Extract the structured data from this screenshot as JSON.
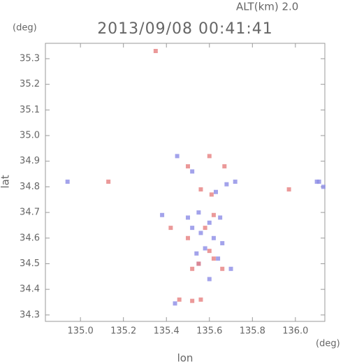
{
  "chart_data": {
    "type": "scatter",
    "title": "2013/09/08 00:41:41",
    "subtitle": "ALT(km) 2.0",
    "x_label": "lon",
    "y_label": "lat",
    "x_unit": "(deg)",
    "y_unit": "(deg)",
    "xlim": [
      134.837,
      136.137
    ],
    "ylim": [
      34.275,
      35.36
    ],
    "xticks": [
      {
        "value": 135,
        "label": "135.0"
      },
      135.2,
      135.4,
      135.6,
      135.8,
      {
        "value": 136,
        "label": "136.0"
      }
    ],
    "yticks": [
      34.3,
      34.4,
      34.5,
      34.6,
      34.7,
      34.8,
      34.9,
      {
        "value": 35,
        "label": "35.0"
      },
      35.1,
      35.2,
      35.3
    ],
    "series": [
      {
        "color": "#8c8ce6",
        "x": [
          135.45,
          135.52,
          134.94,
          135.63,
          135.68,
          135.72,
          136.1,
          136.13,
          136.11,
          135.55,
          135.5,
          135.6,
          135.65,
          135.56,
          135.62,
          135.58,
          135.54,
          135.66,
          135.7,
          135.55,
          135.6,
          135.44,
          135.38,
          135.52,
          135.64
        ],
        "y": [
          34.92,
          34.86,
          34.82,
          34.78,
          34.81,
          34.82,
          34.82,
          34.8,
          34.82,
          34.7,
          34.68,
          34.66,
          34.68,
          34.62,
          34.6,
          34.56,
          34.54,
          34.58,
          34.48,
          34.5,
          34.44,
          34.345,
          34.69,
          34.64,
          34.52
        ]
      },
      {
        "color": "#e68080",
        "x": [
          135.35,
          135.5,
          135.67,
          135.6,
          135.56,
          135.61,
          135.97,
          135.13,
          135.42,
          135.62,
          135.58,
          135.5,
          135.6,
          135.55,
          135.52,
          135.62,
          135.46,
          135.52,
          135.56,
          135.66
        ],
        "y": [
          35.33,
          34.88,
          34.88,
          34.92,
          34.79,
          34.77,
          34.79,
          34.82,
          34.64,
          34.69,
          34.64,
          34.6,
          34.55,
          34.5,
          34.48,
          34.52,
          34.36,
          34.355,
          34.36,
          34.48
        ]
      }
    ]
  }
}
